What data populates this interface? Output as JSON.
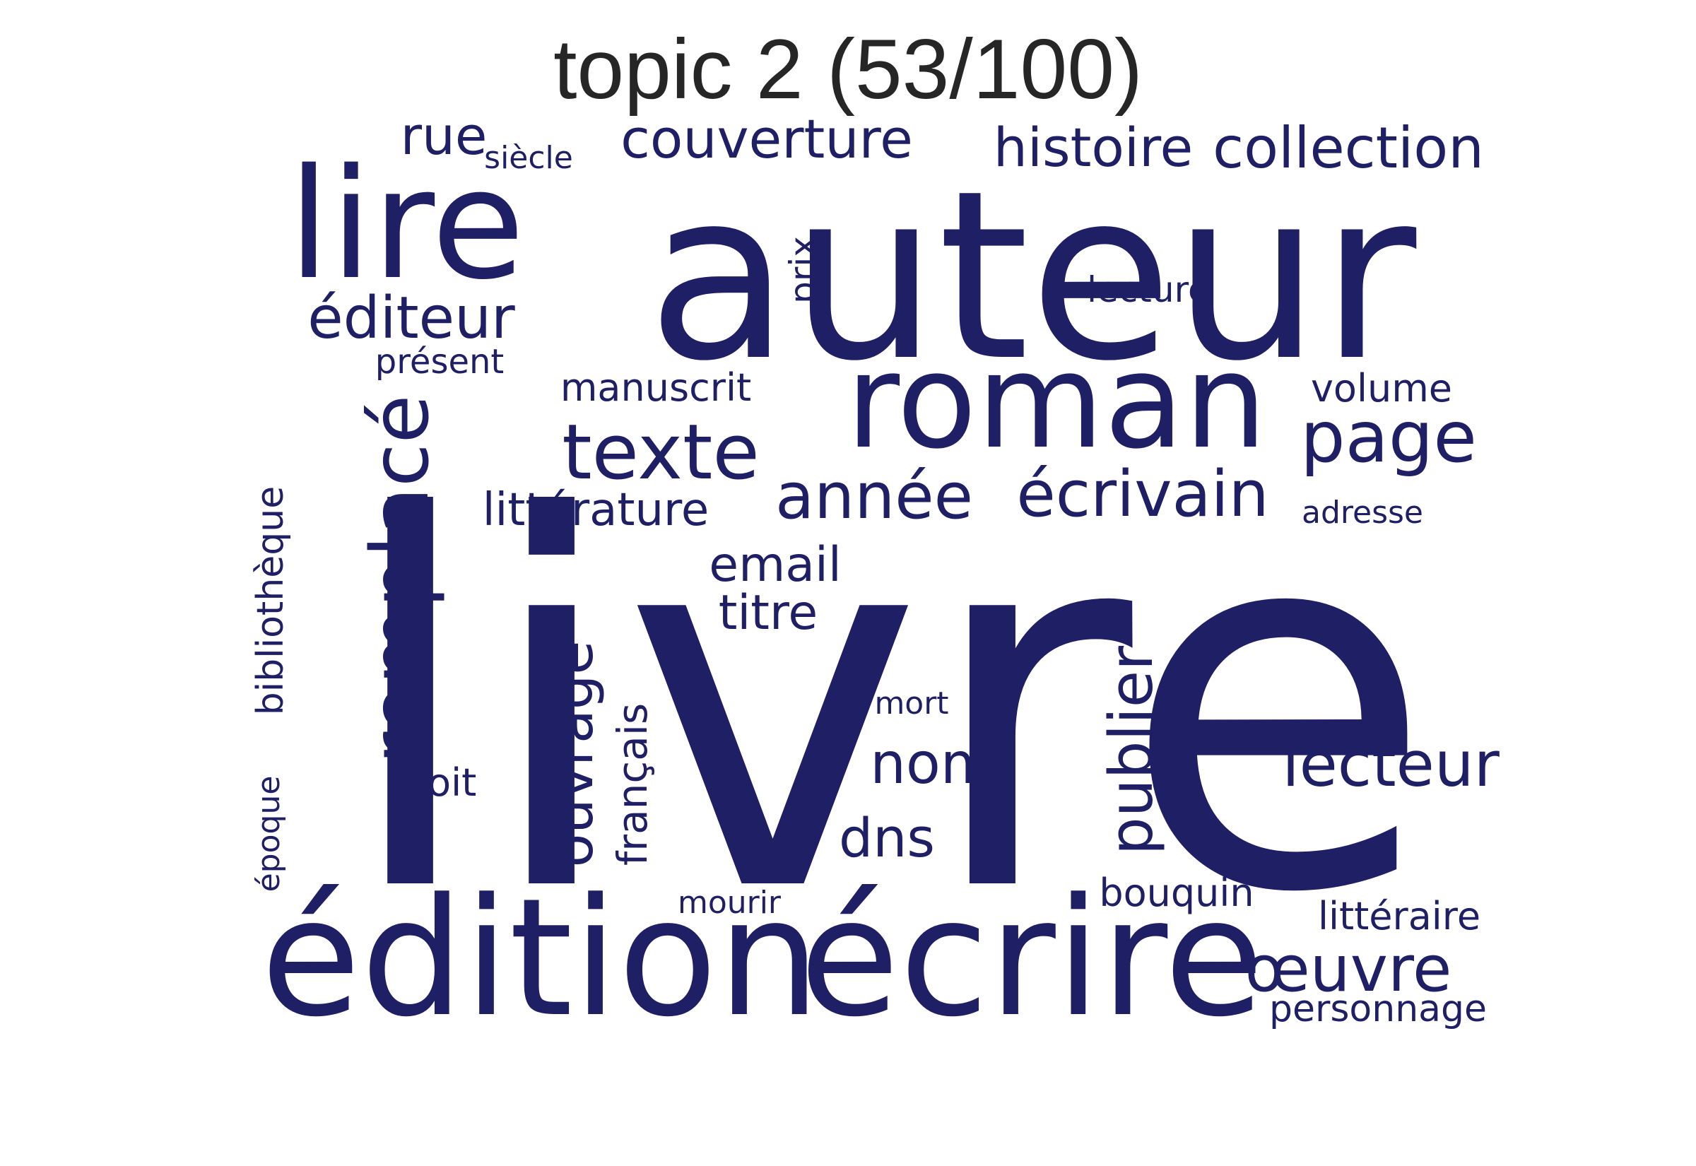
{
  "title": "topic 2 (53/100)",
  "word_color": "#1f1f66",
  "words": [
    {
      "text": "livre"
    },
    {
      "text": "auteur"
    },
    {
      "text": "roman"
    },
    {
      "text": "édition"
    },
    {
      "text": "écrire"
    },
    {
      "text": "lire"
    },
    {
      "text": "remplacé"
    },
    {
      "text": "texte"
    },
    {
      "text": "page"
    },
    {
      "text": "année"
    },
    {
      "text": "écrivain"
    },
    {
      "text": "publier"
    },
    {
      "text": "œuvre"
    },
    {
      "text": "lecteur"
    },
    {
      "text": "éditeur"
    },
    {
      "text": "ouvrage"
    },
    {
      "text": "nom"
    },
    {
      "text": "dns"
    },
    {
      "text": "email"
    },
    {
      "text": "titre"
    },
    {
      "text": "couverture"
    },
    {
      "text": "histoire"
    },
    {
      "text": "collection"
    },
    {
      "text": "rue"
    },
    {
      "text": "littérature"
    },
    {
      "text": "bibliothèque"
    },
    {
      "text": "français"
    },
    {
      "text": "manuscrit"
    },
    {
      "text": "volume"
    },
    {
      "text": "droit"
    },
    {
      "text": "bouquin"
    },
    {
      "text": "littéraire"
    },
    {
      "text": "personnage"
    },
    {
      "text": "époque"
    },
    {
      "text": "prix"
    },
    {
      "text": "lecture"
    },
    {
      "text": "présent"
    },
    {
      "text": "siècle"
    },
    {
      "text": "mort"
    },
    {
      "text": "mourir"
    },
    {
      "text": "adresse"
    }
  ]
}
